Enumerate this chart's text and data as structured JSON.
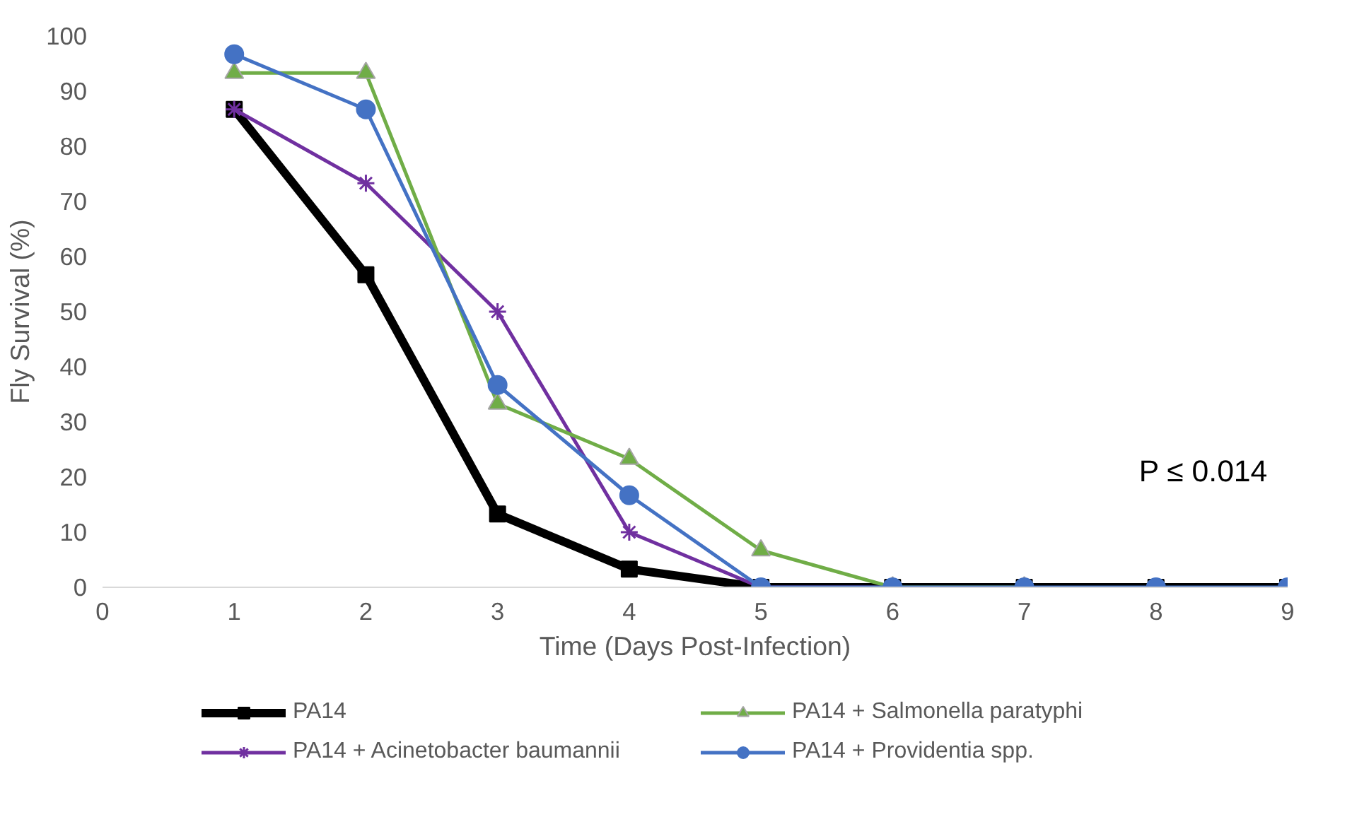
{
  "chart_data": {
    "type": "line",
    "xlabel": "Time (Days Post-Infection)",
    "ylabel": "Fly Survival (%)",
    "x": [
      1,
      2,
      3,
      4,
      5,
      6,
      7,
      8,
      9
    ],
    "xlim": [
      0,
      9
    ],
    "xticks": [
      0,
      1,
      2,
      3,
      4,
      5,
      6,
      7,
      8,
      9
    ],
    "ylim": [
      0,
      100
    ],
    "yticks": [
      0,
      10,
      20,
      30,
      40,
      50,
      60,
      70,
      80,
      90,
      100
    ],
    "grid": false,
    "legend": "bottom",
    "line_style": "solid",
    "annotations": [
      "P ≤ 0.014"
    ],
    "series": [
      {
        "name": "PA14",
        "color": "#000000",
        "marker": "square",
        "values": [
          86.7,
          56.7,
          13.3,
          3.3,
          0,
          0,
          0,
          0,
          0
        ]
      },
      {
        "name": "PA14 + Acinetobacter baumannii",
        "color": "#7030a0",
        "marker": "cross",
        "values": [
          86.7,
          73.3,
          50,
          10,
          0,
          0,
          null,
          null,
          null
        ]
      },
      {
        "name": "PA14 + Salmonella paratyphi",
        "color": "#70ad47",
        "marker": "triangle",
        "values": [
          93.3,
          93.3,
          33.3,
          23.3,
          6.7,
          0,
          0,
          null,
          null
        ]
      },
      {
        "name": "PA14 + Providentia spp.",
        "color": "#4472c4",
        "marker": "circle",
        "values": [
          96.7,
          86.7,
          36.7,
          16.7,
          0,
          0,
          0,
          0,
          0
        ]
      }
    ]
  }
}
